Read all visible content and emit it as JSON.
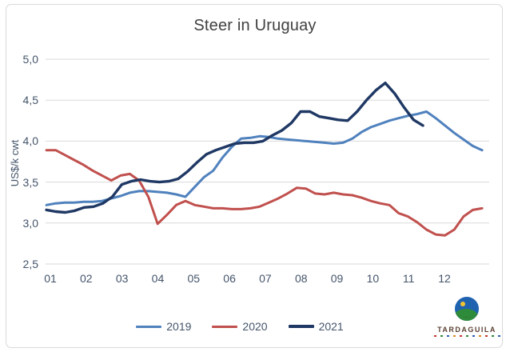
{
  "chart_data": {
    "type": "line",
    "title": "Steer in Uruguay",
    "xlabel": "",
    "ylabel": "US$/k cwt",
    "ylim": [
      2.5,
      5.0
    ],
    "y_ticks": [
      2.5,
      3.0,
      3.5,
      4.0,
      4.5,
      5.0
    ],
    "y_tick_labels": [
      "2,5",
      "3,0",
      "3,5",
      "4,0",
      "4,5",
      "5,0"
    ],
    "x_months": [
      1,
      2,
      3,
      4,
      5,
      6,
      7,
      8,
      9,
      10,
      11,
      12
    ],
    "x_tick_labels": [
      "01",
      "02",
      "03",
      "04",
      "05",
      "06",
      "07",
      "08",
      "09",
      "10",
      "11",
      "12"
    ],
    "grid": "horizontal",
    "grid_color": "#d9d9d9",
    "legend_position": "bottom",
    "text_color": "#44546a",
    "title_color": "#404040",
    "frame_border_color": "#d9d9d9",
    "x_unit": "month (weekly data points)",
    "series": [
      {
        "name": "2019",
        "color": "#4f81bd",
        "month_start": 0.89,
        "month_end": 13.05,
        "values": [
          3.22,
          3.24,
          3.25,
          3.25,
          3.26,
          3.26,
          3.27,
          3.3,
          3.33,
          3.37,
          3.39,
          3.39,
          3.38,
          3.37,
          3.35,
          3.32,
          3.44,
          3.56,
          3.64,
          3.8,
          3.93,
          4.03,
          4.04,
          4.06,
          4.05,
          4.03,
          4.02,
          4.01,
          4.0,
          3.99,
          3.98,
          3.97,
          3.98,
          4.03,
          4.11,
          4.17,
          4.21,
          4.25,
          4.28,
          4.31,
          4.33,
          4.36,
          4.28,
          4.19,
          4.1,
          4.02,
          3.94,
          3.89
        ]
      },
      {
        "name": "2020",
        "color": "#c0504d",
        "month_start": 0.89,
        "month_end": 13.05,
        "values": [
          3.89,
          3.89,
          3.83,
          3.77,
          3.71,
          3.64,
          3.58,
          3.52,
          3.58,
          3.6,
          3.52,
          3.32,
          2.99,
          3.1,
          3.22,
          3.27,
          3.22,
          3.2,
          3.18,
          3.18,
          3.17,
          3.17,
          3.18,
          3.2,
          3.25,
          3.3,
          3.36,
          3.43,
          3.42,
          3.36,
          3.35,
          3.37,
          3.35,
          3.34,
          3.31,
          3.27,
          3.24,
          3.22,
          3.12,
          3.08,
          3.01,
          2.92,
          2.86,
          2.85,
          2.92,
          3.08,
          3.16,
          3.18
        ]
      },
      {
        "name": "2021",
        "color": "#1f3864",
        "month_start": 0.89,
        "month_end": 11.4,
        "values": [
          3.16,
          3.14,
          3.13,
          3.15,
          3.19,
          3.2,
          3.24,
          3.32,
          3.47,
          3.51,
          3.53,
          3.51,
          3.5,
          3.51,
          3.54,
          3.63,
          3.74,
          3.84,
          3.89,
          3.93,
          3.97,
          3.98,
          3.98,
          4.0,
          4.07,
          4.13,
          4.22,
          4.36,
          4.36,
          4.3,
          4.28,
          4.26,
          4.25,
          4.36,
          4.5,
          4.62,
          4.71,
          4.58,
          4.41,
          4.26,
          4.19
        ]
      }
    ]
  },
  "legend": {
    "items": [
      "2019",
      "2020",
      "2021"
    ]
  },
  "logo": {
    "name": "TARDAGUILA",
    "globe_sky_color": "#1f63b0",
    "globe_sun_color": "#f2c431",
    "globe_hill_color": "#2e8b3a",
    "globe_base_color": "#4a3526",
    "text_color": "#5a4033",
    "subtext_mark_colors": [
      "#c03a30",
      "#2e8b3a",
      "#2f5fb0",
      "#e08a2a",
      "#c03a30",
      "#2e8b3a",
      "#2f5fb0",
      "#e08a2a",
      "#c03a30",
      "#2e8b3a",
      "#2f5fb0"
    ]
  }
}
